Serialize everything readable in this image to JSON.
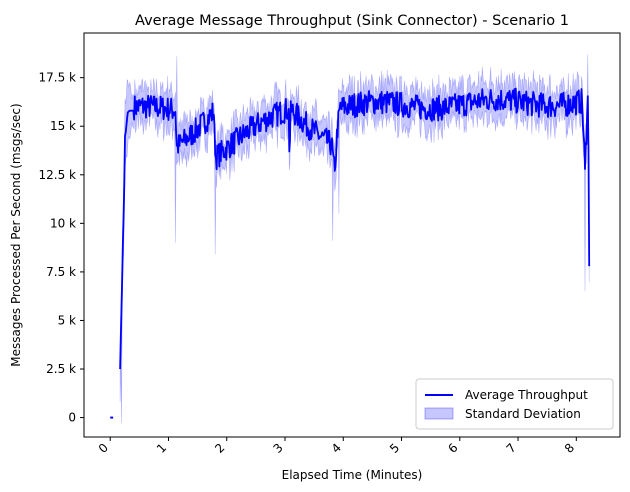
{
  "chart_data": {
    "type": "line",
    "title": "Average Message Throughput (Sink Connector) - Scenario 1",
    "xlabel": "Elapsed Time (Minutes)",
    "ylabel": "Messages Processed Per Second (msgs/sec)",
    "xlim": [
      -0.45,
      8.75
    ],
    "ylim": [
      -1000,
      19800
    ],
    "xticks": [
      0,
      1,
      2,
      3,
      4,
      5,
      6,
      7,
      8
    ],
    "xtick_labels": [
      "0",
      "1",
      "2",
      "3",
      "4",
      "5",
      "6",
      "7",
      "8"
    ],
    "yticks": [
      0,
      2500,
      5000,
      7500,
      10000,
      12500,
      15000,
      17500
    ],
    "ytick_labels": [
      "0",
      "2.5 k",
      "5 k",
      "7.5 k",
      "10 k",
      "12.5 k",
      "15 k",
      "17.5 k"
    ],
    "legend_position": "bottom-right",
    "grid": false,
    "series": [
      {
        "name": "Average Throughput",
        "kind": "line",
        "color": "#0000ff",
        "mean_level": 16000,
        "x": [
          0.0,
          0.05,
          0.17,
          0.22,
          0.26,
          0.3,
          0.33,
          0.4,
          1.12,
          1.14,
          1.78,
          1.8,
          3.06,
          3.08,
          3.1,
          3.8,
          3.85,
          3.9,
          3.95,
          8.1,
          8.15,
          8.2,
          8.23
        ],
        "y": [
          0,
          0,
          2500,
          9000,
          14500,
          15700,
          15800,
          15800,
          15900,
          14000,
          15900,
          13500,
          15900,
          13700,
          15900,
          14200,
          12700,
          15000,
          16000,
          16300,
          12800,
          16700,
          7800
        ]
      },
      {
        "name": "Standard Deviation",
        "kind": "band",
        "color": "#0000ff",
        "band_halfwidth": 800,
        "spikes": [
          {
            "x": 0.2,
            "y": -300
          },
          {
            "x": 1.12,
            "y": 9000
          },
          {
            "x": 1.14,
            "y": 18600
          },
          {
            "x": 1.8,
            "y": 8400
          },
          {
            "x": 3.82,
            "y": 9100
          },
          {
            "x": 3.93,
            "y": 10500
          },
          {
            "x": 8.15,
            "y": 6500
          },
          {
            "x": 8.2,
            "y": 18700
          }
        ]
      }
    ]
  }
}
